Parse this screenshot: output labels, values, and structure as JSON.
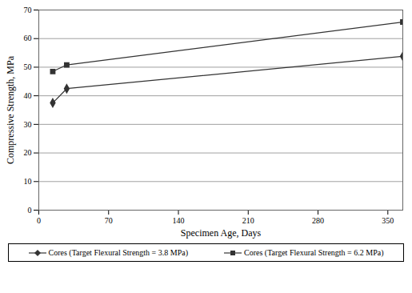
{
  "chart_data": {
    "type": "line",
    "xlabel": "Specimen Age, Days",
    "ylabel": "Compressive Strength, MPa",
    "x": [
      14,
      28,
      365
    ],
    "series": [
      {
        "name": "Cores (Target Flexural Strength = 3.8 MPa)",
        "color": "#333333",
        "marker": "diamond",
        "values": [
          37.5,
          42.5,
          53.8
        ]
      },
      {
        "name": "Cores (Target Flexural Strength = 6.2 MPa)",
        "color": "#333333",
        "marker": "square",
        "values": [
          48.5,
          50.8,
          65.8
        ]
      }
    ],
    "xlim": [
      0,
      365
    ],
    "xticks": [
      0,
      70,
      140,
      210,
      280,
      350
    ],
    "ylim": [
      0,
      70
    ],
    "yticks": [
      0,
      10,
      20,
      30,
      40,
      50,
      60,
      70
    ],
    "grid": true,
    "legend": "bottom"
  }
}
